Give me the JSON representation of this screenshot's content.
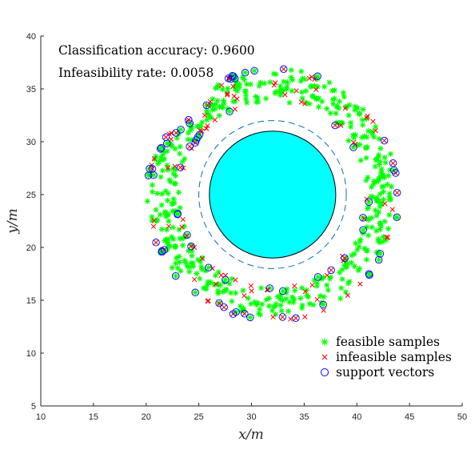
{
  "chart_data": {
    "type": "scatter",
    "xlabel": "x/m",
    "ylabel": "y/m",
    "xlim": [
      10,
      50
    ],
    "ylim": [
      5,
      40
    ],
    "xticks": [
      10,
      15,
      20,
      25,
      30,
      35,
      40,
      45,
      50
    ],
    "yticks": [
      5,
      10,
      15,
      20,
      25,
      30,
      35,
      40
    ],
    "grid": false,
    "annotations": [
      "Classification accuracy: 0.9600",
      "Infeasibility rate: 0.0058"
    ],
    "legend_location": "bottom-right",
    "legend": [
      {
        "label": "feasible samples",
        "marker": "asterisk",
        "color": "#00ff00"
      },
      {
        "label": "infeasible samples",
        "marker": "x",
        "color": "#ff0000"
      },
      {
        "label": "support vectors",
        "marker": "circle",
        "color": "#0000ff"
      }
    ],
    "obstacle": {
      "center": [
        32,
        25
      ],
      "radius": 6,
      "fill": "#00ffff",
      "edge": "#000000"
    },
    "boundary": {
      "center": [
        32,
        25
      ],
      "radius": 7.0,
      "color": "#0072bd",
      "style": "dashed"
    },
    "samples": {
      "center": [
        32,
        25
      ],
      "r_min": 8.8,
      "r_max": 12.0,
      "outer_dent_angle_deg": 135
    }
  }
}
